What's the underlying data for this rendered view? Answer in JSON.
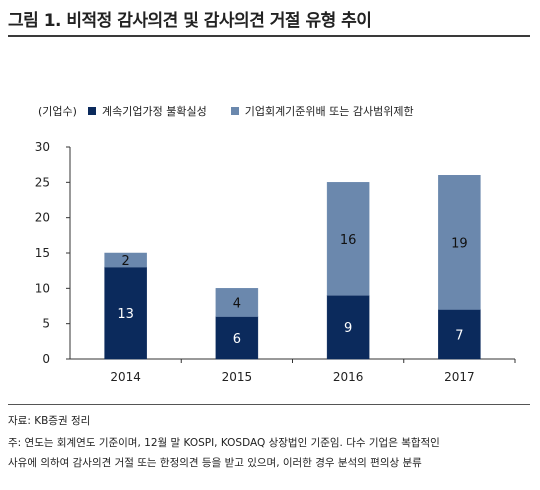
{
  "figure": {
    "title": "그림 1. 비적정 감사의견 및 감사의견 거절 유형 추이"
  },
  "chart_data": {
    "type": "bar",
    "stacked": true,
    "unit_label": "(기업수)",
    "categories": [
      "2014",
      "2015",
      "2016",
      "2017"
    ],
    "series": [
      {
        "name": "계속기업가정 불확실성",
        "values": [
          13,
          6,
          9,
          7
        ],
        "color": "#0b2a5c",
        "label_color": "#ffffff"
      },
      {
        "name": "기업회계기준위배 또는 감사범위제한",
        "values": [
          2,
          4,
          16,
          19
        ],
        "color": "#6b88ad",
        "label_color": "#111111"
      }
    ],
    "ylim": [
      0,
      30
    ],
    "yticks": [
      "0",
      "5",
      "10",
      "15",
      "20",
      "25",
      "30"
    ],
    "legend_position": "top",
    "grid": false
  },
  "footer": {
    "source": "자료: KB증권 정리",
    "note_line1": "주: 연도는 회계연도 기준이며, 12월 말 KOSPI, KOSDAQ 상장법인 기준임. 다수 기업은 복합적인",
    "note_line2": "사유에 의하여 감사의견 거절 또는 한정의견 등을 받고 있으며, 이러한 경우 분석의 편의상 분류"
  }
}
